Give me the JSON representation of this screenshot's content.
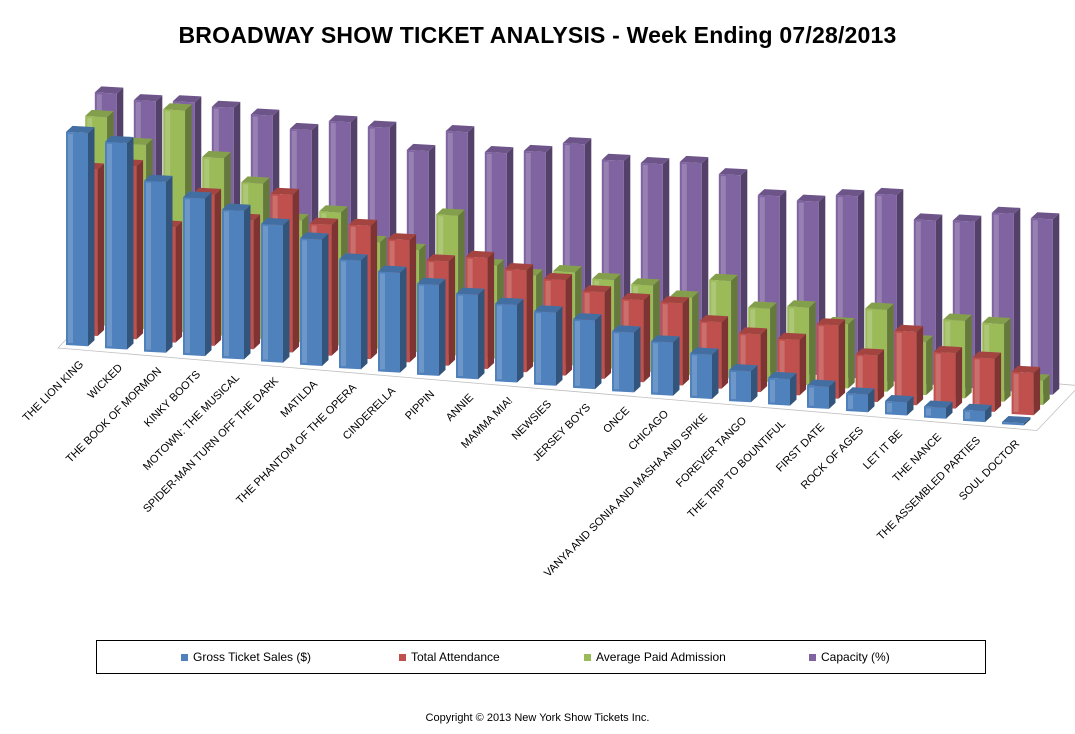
{
  "chart_data": {
    "type": "bar",
    "variant": "3d-clustered",
    "title": "BROADWAY SHOW TICKET ANALYSIS - Week Ending 07/28/2013",
    "xlabel": "",
    "ylabel": "",
    "ylim": [
      0,
      100
    ],
    "grid": false,
    "legend_position": "bottom",
    "categories": [
      "THE LION KING",
      "WICKED",
      "THE BOOK OF MORMON",
      "KINKY BOOTS",
      "MOTOWN: THE MUSICAL",
      "SPIDER-MAN TURN OFF THE DARK",
      "MATILDA",
      "THE PHANTOM OF THE OPERA",
      "CINDERELLA",
      "PIPPIN",
      "ANNIE",
      "MAMMA MIA!",
      "NEWSIES",
      "JERSEY BOYS",
      "ONCE",
      "CHICAGO",
      "VANYA AND SONIA AND MASHA AND SPIKE",
      "FOREVER TANGO",
      "THE TRIP TO BOUNTIFUL",
      "FIRST DATE",
      "ROCK OF AGES",
      "LET IT BE",
      "THE NANCE",
      "THE ASSEMBLED PARTIES",
      "SOUL DOCTOR"
    ],
    "series": [
      {
        "name": "Gross Ticket Sales ($)",
        "color": "#4F81BD",
        "values": [
          96,
          93,
          77,
          71,
          67,
          62,
          57,
          49,
          45,
          41,
          38,
          35,
          33,
          31,
          27,
          24,
          20,
          14,
          12,
          10,
          8,
          6,
          5,
          5,
          1
        ]
      },
      {
        "name": "Total Attendance",
        "color": "#C0504D",
        "values": [
          75,
          78,
          52,
          68,
          58,
          71,
          59,
          60,
          55,
          47,
          50,
          46,
          43,
          39,
          37,
          37,
          30,
          26,
          25,
          33,
          21,
          33,
          25,
          24,
          19
        ]
      },
      {
        "name": "Average Paid Admission",
        "color": "#9BBB59",
        "values": [
          94,
          83,
          100,
          80,
          70,
          55,
          60,
          48,
          46,
          63,
          42,
          39,
          42,
          40,
          39,
          35,
          44,
          33,
          35,
          29,
          37,
          24,
          35,
          35,
          11
        ]
      },
      {
        "name": "Capacity (%)",
        "color": "#8064A2",
        "values": [
          100,
          98,
          99,
          98,
          96,
          91,
          96,
          95,
          86,
          96,
          88,
          90,
          95,
          89,
          89,
          91,
          87,
          79,
          78,
          82,
          84,
          74,
          75,
          80,
          79
        ]
      }
    ]
  },
  "legend": {
    "items": [
      {
        "label": "Gross Ticket Sales ($)",
        "color": "#4F81BD"
      },
      {
        "label": "Total Attendance",
        "color": "#C0504D"
      },
      {
        "label": "Average Paid Admission",
        "color": "#9BBB59"
      },
      {
        "label": "Capacity (%)",
        "color": "#8064A2"
      }
    ]
  },
  "footer": {
    "copyright": "Copyright © 2013 New York Show Tickets Inc."
  }
}
